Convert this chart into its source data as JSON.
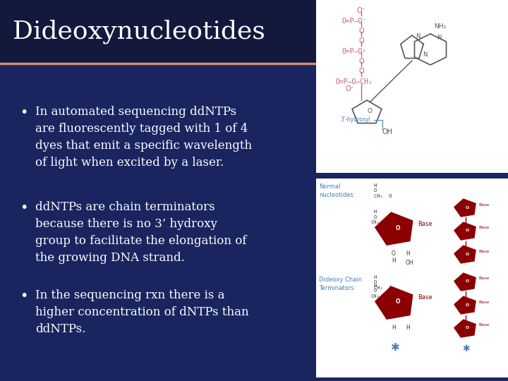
{
  "title": "Dideoxynucleotides",
  "title_color": "#ffffff",
  "title_fontsize": 26,
  "bg_color": "#1a2560",
  "bg_color_title": "#12193d",
  "divider_color": "#d4896a",
  "text_color": "#ffffff",
  "bullet_points": [
    "In automated sequencing ddNTPs\nare fluorescently tagged with 1 of 4\ndyes that emit a specific wavelength\nof light when excited by a laser.",
    "ddNTPs are chain terminators\nbecause there is no 3’ hydroxy\ngroup to facilitate the elongation of\nthe growing DNA strand.",
    "In the sequencing rxn there is a\nhigher concentration of dNTPs than\nddNTPs."
  ],
  "bullet_fontsize": 12,
  "phosphate_color": "#c06070",
  "base_color": "#555555",
  "sugar_color": "#8B0000",
  "label_color": "#4a7fb5",
  "white": "#ffffff"
}
